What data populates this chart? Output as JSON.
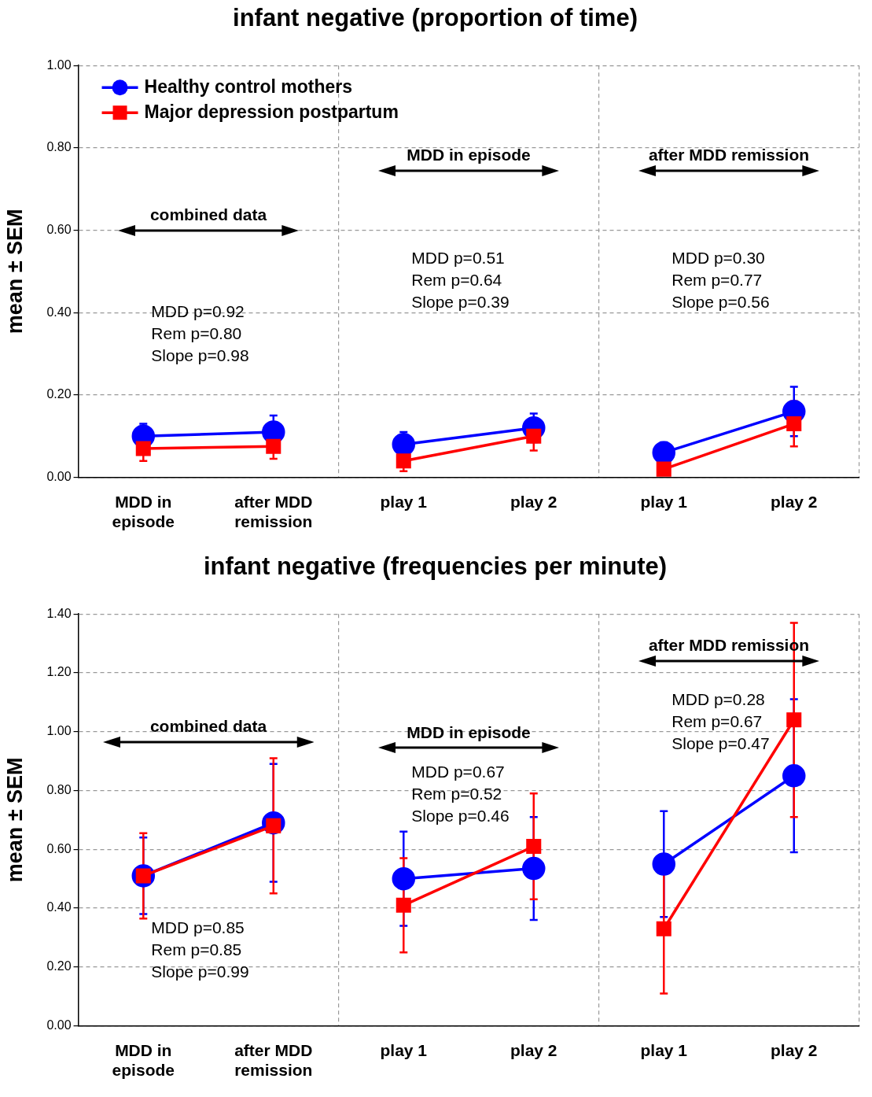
{
  "chart_data": [
    {
      "type": "line",
      "title": "infant negative (proportion of time)",
      "ylabel": "mean ± SEM",
      "categories": [
        "MDD in episode",
        "after MDD remission",
        "play 1",
        "play 2",
        "play 1",
        "play 2"
      ],
      "series": [
        {
          "name": "Healthy control mothers",
          "color": "#0000ff",
          "marker": "circle",
          "values": [
            0.1,
            0.11,
            null,
            null,
            null,
            null
          ],
          "errors": [
            0.03,
            0.04,
            null,
            null,
            null,
            null
          ]
        },
        {
          "name": "Major depression postpartum",
          "color": "#ff0000",
          "marker": "square",
          "values": [
            0.07,
            0.075,
            null,
            null,
            null,
            null
          ],
          "errors": [
            0.03,
            0.03,
            null,
            null,
            null,
            null
          ]
        },
        {
          "color": "#0000ff",
          "marker": "circle",
          "values": [
            null,
            null,
            0.08,
            0.12,
            null,
            null
          ],
          "errors": [
            null,
            null,
            0.03,
            0.035,
            null,
            null
          ]
        },
        {
          "color": "#ff0000",
          "marker": "square",
          "values": [
            null,
            null,
            0.04,
            0.1,
            null,
            null
          ],
          "errors": [
            null,
            null,
            0.025,
            0.035,
            null,
            null
          ]
        },
        {
          "color": "#0000ff",
          "marker": "circle",
          "values": [
            null,
            null,
            null,
            null,
            0.06,
            0.16
          ],
          "errors": [
            null,
            null,
            null,
            null,
            0.025,
            0.06
          ]
        },
        {
          "color": "#ff0000",
          "marker": "square",
          "values": [
            null,
            null,
            null,
            null,
            0.02,
            0.13
          ],
          "errors": [
            null,
            null,
            null,
            null,
            null,
            0.055
          ]
        }
      ],
      "ylim": [
        0,
        1
      ],
      "yticks": [
        {
          "value": 0,
          "label": "0.00"
        },
        {
          "value": 0.2,
          "label": "0.20"
        },
        {
          "value": 0.4,
          "label": "0.40"
        },
        {
          "value": 0.6,
          "label": "0.60"
        },
        {
          "value": 0.8,
          "label": "0.80"
        },
        {
          "value": 1,
          "label": "1.00"
        }
      ],
      "grid": true,
      "legend": "top left",
      "annotations": [
        "combined data",
        "MDD in episode",
        "after MDD remission",
        "MDD p=0.92\nRem p=0.80\nSlope p=0.98",
        "MDD p=0.51\nRem p=0.64\nSlope p=0.39",
        "MDD p=0.30\nRem p=0.77\nSlope p=0.56"
      ]
    },
    {
      "type": "line",
      "title": "infant negative (frequencies per minute)",
      "ylabel": "mean ± SEM",
      "categories": [
        "MDD in episode",
        "after MDD remission",
        "play 1",
        "play 2",
        "play 1",
        "play 2"
      ],
      "series": [
        {
          "color": "#0000ff",
          "marker": "circle",
          "values": [
            0.51,
            0.69,
            null,
            null,
            null,
            null
          ],
          "errors": [
            0.13,
            0.2,
            null,
            null,
            null,
            null
          ]
        },
        {
          "color": "#ff0000",
          "marker": "square",
          "values": [
            0.51,
            0.68,
            null,
            null,
            null,
            null
          ],
          "errors": [
            0.145,
            0.23,
            null,
            null,
            null,
            null
          ]
        },
        {
          "color": "#0000ff",
          "marker": "circle",
          "values": [
            null,
            null,
            0.5,
            0.535,
            null,
            null
          ],
          "errors": [
            null,
            null,
            0.16,
            0.175,
            null,
            null
          ]
        },
        {
          "color": "#ff0000",
          "marker": "square",
          "values": [
            null,
            null,
            0.41,
            0.61,
            null,
            null
          ],
          "errors": [
            null,
            null,
            0.16,
            0.18,
            null,
            null
          ]
        },
        {
          "color": "#0000ff",
          "marker": "circle",
          "values": [
            null,
            null,
            null,
            null,
            0.55,
            0.85
          ],
          "errors": [
            null,
            null,
            null,
            null,
            0.18,
            0.26
          ]
        },
        {
          "color": "#ff0000",
          "marker": "square",
          "values": [
            null,
            null,
            null,
            null,
            0.33,
            1.04
          ],
          "errors": [
            null,
            null,
            null,
            null,
            0.22,
            0.33
          ]
        }
      ],
      "ylim": [
        0,
        1.4
      ],
      "yticks": [
        {
          "value": 0,
          "label": "0.00"
        },
        {
          "value": 0.2,
          "label": "0.20"
        },
        {
          "value": 0.4,
          "label": "0.40"
        },
        {
          "value": 0.6,
          "label": "0.60"
        },
        {
          "value": 0.8,
          "label": "0.80"
        },
        {
          "value": 1,
          "label": "1.00"
        },
        {
          "value": 1.2,
          "label": "1.20"
        },
        {
          "value": 1.4,
          "label": "1.40"
        }
      ],
      "grid": true,
      "annotations": [
        "combined data",
        "MDD in episode",
        "after MDD remission",
        "MDD p=0.85\nRem p=0.85\nSlope p=0.99",
        "MDD p=0.67\nRem p=0.52\nSlope p=0.46",
        "MDD p=0.28\nRem p=0.67\nSlope p=0.47"
      ]
    }
  ]
}
